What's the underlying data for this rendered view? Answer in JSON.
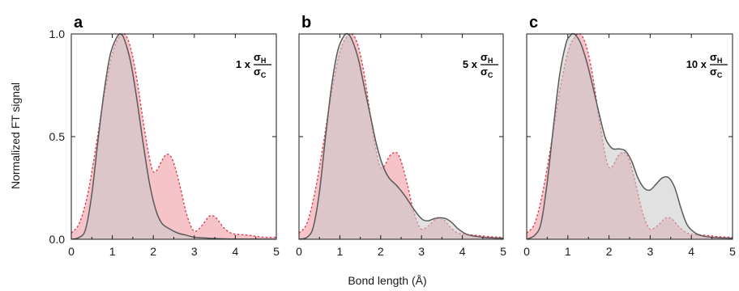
{
  "figure": {
    "ylabel": "Normalized FT signal",
    "xlabel": "Bond length (Å)"
  },
  "chart_data": [
    {
      "type": "area",
      "panel": "a",
      "annotation": {
        "factor": "1 x",
        "numerator": "σ",
        "num_sub": "H",
        "denominator": "σ",
        "den_sub": "C"
      },
      "xlim": [
        0,
        5
      ],
      "ylim": [
        0,
        1.0
      ],
      "xticks": [
        0,
        1,
        2,
        3,
        4,
        5
      ],
      "yticks": [
        0.0,
        0.5,
        1.0
      ],
      "series": [
        {
          "style": "solid-gray",
          "x": [
            0.0,
            0.2,
            0.35,
            0.5,
            0.65,
            0.8,
            0.95,
            1.1,
            1.2,
            1.3,
            1.45,
            1.6,
            1.75,
            1.9,
            2.05,
            2.2,
            2.4,
            2.6,
            2.8,
            3.0,
            3.3,
            3.6,
            4.0,
            5.0
          ],
          "y": [
            0.0,
            0.01,
            0.05,
            0.22,
            0.48,
            0.72,
            0.9,
            0.98,
            1.0,
            0.97,
            0.86,
            0.68,
            0.47,
            0.28,
            0.15,
            0.08,
            0.05,
            0.03,
            0.02,
            0.01,
            0.006,
            0.003,
            0.001,
            0.0
          ]
        },
        {
          "style": "dotted-red",
          "x": [
            0.0,
            0.2,
            0.4,
            0.6,
            0.8,
            1.0,
            1.15,
            1.3,
            1.45,
            1.6,
            1.75,
            1.9,
            2.0,
            2.1,
            2.2,
            2.3,
            2.4,
            2.5,
            2.65,
            2.8,
            2.95,
            3.05,
            3.2,
            3.35,
            3.45,
            3.55,
            3.7,
            3.85,
            4.0,
            4.3,
            4.7,
            5.0
          ],
          "y": [
            0.03,
            0.08,
            0.22,
            0.45,
            0.7,
            0.9,
            0.98,
            1.0,
            0.93,
            0.78,
            0.58,
            0.4,
            0.33,
            0.34,
            0.38,
            0.41,
            0.41,
            0.37,
            0.26,
            0.13,
            0.05,
            0.04,
            0.07,
            0.11,
            0.115,
            0.1,
            0.06,
            0.035,
            0.025,
            0.02,
            0.01,
            0.01
          ]
        }
      ]
    },
    {
      "type": "area",
      "panel": "b",
      "annotation": {
        "factor": "5 x",
        "numerator": "σ",
        "num_sub": "H",
        "denominator": "σ",
        "den_sub": "C"
      },
      "xlim": [
        0,
        5
      ],
      "ylim": [
        0,
        1.0
      ],
      "xticks": [
        0,
        1,
        2,
        3,
        4,
        5
      ],
      "yticks": [
        0.0,
        0.5,
        1.0
      ],
      "series": [
        {
          "style": "solid-gray",
          "x": [
            0.0,
            0.2,
            0.35,
            0.5,
            0.65,
            0.8,
            0.95,
            1.1,
            1.2,
            1.3,
            1.45,
            1.6,
            1.75,
            1.9,
            2.05,
            2.2,
            2.4,
            2.6,
            2.8,
            3.0,
            3.15,
            3.3,
            3.45,
            3.6,
            3.75,
            3.9,
            4.1,
            4.3,
            4.6,
            5.0
          ],
          "y": [
            0.0,
            0.01,
            0.06,
            0.23,
            0.5,
            0.75,
            0.92,
            0.99,
            1.0,
            0.97,
            0.88,
            0.74,
            0.6,
            0.46,
            0.36,
            0.3,
            0.26,
            0.21,
            0.15,
            0.1,
            0.09,
            0.1,
            0.105,
            0.1,
            0.08,
            0.05,
            0.025,
            0.015,
            0.008,
            0.005
          ]
        },
        {
          "style": "dotted-red",
          "x": [
            0.0,
            0.2,
            0.4,
            0.6,
            0.8,
            1.0,
            1.15,
            1.3,
            1.45,
            1.6,
            1.75,
            1.9,
            2.0,
            2.1,
            2.2,
            2.3,
            2.4,
            2.5,
            2.65,
            2.8,
            2.95,
            3.05,
            3.2,
            3.35,
            3.45,
            3.55,
            3.7,
            3.85,
            4.0,
            4.3,
            4.7,
            5.0
          ],
          "y": [
            0.03,
            0.08,
            0.24,
            0.47,
            0.72,
            0.91,
            0.98,
            1.0,
            0.94,
            0.8,
            0.6,
            0.42,
            0.35,
            0.36,
            0.4,
            0.42,
            0.42,
            0.38,
            0.27,
            0.14,
            0.06,
            0.05,
            0.07,
            0.1,
            0.105,
            0.095,
            0.06,
            0.035,
            0.025,
            0.02,
            0.012,
            0.01
          ]
        }
      ]
    },
    {
      "type": "area",
      "panel": "c",
      "annotation": {
        "factor": "10 x",
        "numerator": "σ",
        "num_sub": "H",
        "denominator": "σ",
        "den_sub": "C"
      },
      "xlim": [
        0,
        5
      ],
      "ylim": [
        0,
        1.0
      ],
      "xticks": [
        0,
        1,
        2,
        3,
        4,
        5
      ],
      "yticks": [
        0.0,
        0.5,
        1.0
      ],
      "series": [
        {
          "style": "solid-gray",
          "x": [
            0.0,
            0.2,
            0.35,
            0.5,
            0.65,
            0.8,
            0.95,
            1.05,
            1.15,
            1.3,
            1.45,
            1.6,
            1.75,
            1.9,
            2.0,
            2.1,
            2.25,
            2.4,
            2.55,
            2.7,
            2.85,
            3.0,
            3.15,
            3.3,
            3.45,
            3.6,
            3.75,
            3.9,
            4.1,
            4.3,
            4.6,
            5.0
          ],
          "y": [
            0.0,
            0.02,
            0.08,
            0.28,
            0.55,
            0.8,
            0.95,
            0.99,
            1.0,
            0.96,
            0.87,
            0.75,
            0.62,
            0.5,
            0.46,
            0.44,
            0.44,
            0.43,
            0.38,
            0.3,
            0.25,
            0.24,
            0.27,
            0.3,
            0.3,
            0.25,
            0.15,
            0.07,
            0.03,
            0.015,
            0.008,
            0.005
          ]
        },
        {
          "style": "dotted-red",
          "x": [
            0.0,
            0.2,
            0.4,
            0.6,
            0.8,
            1.0,
            1.15,
            1.3,
            1.45,
            1.6,
            1.75,
            1.9,
            2.0,
            2.1,
            2.2,
            2.3,
            2.4,
            2.5,
            2.65,
            2.8,
            2.95,
            3.05,
            3.2,
            3.35,
            3.45,
            3.55,
            3.7,
            3.85,
            4.0,
            4.3,
            4.7,
            5.0
          ],
          "y": [
            0.03,
            0.08,
            0.24,
            0.47,
            0.72,
            0.91,
            0.98,
            1.0,
            0.94,
            0.8,
            0.6,
            0.42,
            0.35,
            0.36,
            0.4,
            0.42,
            0.42,
            0.38,
            0.27,
            0.14,
            0.06,
            0.05,
            0.07,
            0.1,
            0.105,
            0.095,
            0.06,
            0.035,
            0.025,
            0.02,
            0.012,
            0.01
          ]
        }
      ]
    }
  ],
  "colors": {
    "gray_fill": "#c9c9c9",
    "gray_line": "#5a5a5a",
    "red_fill": "#f4b9bf",
    "red_line": "#d9404f",
    "overlap_fill": "#b8898c",
    "axis": "#1a1a1a"
  }
}
